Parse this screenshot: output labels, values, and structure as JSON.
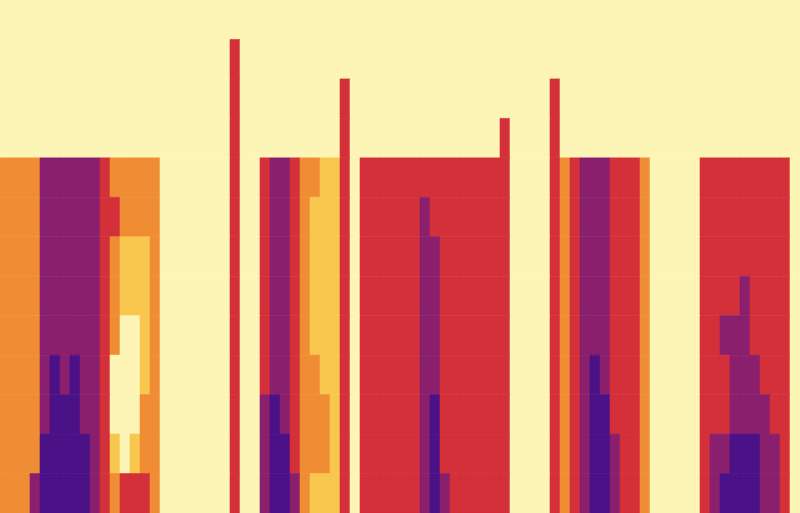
{
  "chart_data": {
    "type": "heatmap",
    "tick_labels": false,
    "xlim": [
      0,
      80
    ],
    "ylim": [
      0,
      13
    ],
    "color_range": [
      0,
      5
    ],
    "cells": [
      [
        0,
        0,
        0,
        0,
        0,
        0,
        0,
        0,
        0,
        0,
        0,
        0,
        0,
        0,
        0,
        0,
        0,
        0,
        0,
        0,
        0,
        0,
        0,
        0,
        0,
        0,
        0,
        0,
        0,
        0,
        0,
        0,
        0,
        0,
        0,
        0,
        0,
        0,
        0,
        0,
        0,
        0,
        0,
        0,
        0,
        0,
        0,
        0,
        0,
        0,
        0,
        0,
        0,
        0,
        0,
        0,
        0,
        0,
        0,
        0,
        0,
        0,
        0,
        0,
        0,
        0,
        0,
        0,
        0,
        0,
        0,
        0,
        0,
        0,
        0,
        0,
        0,
        0,
        0,
        0
      ],
      [
        0,
        0,
        0,
        0,
        0,
        0,
        0,
        0,
        0,
        0,
        0,
        0,
        0,
        0,
        0,
        0,
        0,
        0,
        0,
        0,
        0,
        0,
        0,
        3,
        0,
        0,
        0,
        0,
        0,
        0,
        0,
        0,
        0,
        0,
        0,
        0,
        0,
        0,
        0,
        0,
        0,
        0,
        0,
        0,
        0,
        0,
        0,
        0,
        0,
        0,
        0,
        0,
        0,
        0,
        0,
        0,
        0,
        0,
        0,
        0,
        0,
        0,
        0,
        0,
        0,
        0,
        0,
        0,
        0,
        0,
        0,
        0,
        0,
        0,
        0,
        0,
        0,
        0,
        0,
        0
      ],
      [
        0,
        0,
        0,
        0,
        0,
        0,
        0,
        0,
        0,
        0,
        0,
        0,
        0,
        0,
        0,
        0,
        0,
        0,
        0,
        0,
        0,
        0,
        0,
        3,
        0,
        0,
        0,
        0,
        0,
        0,
        0,
        0,
        0,
        0,
        3,
        0,
        0,
        0,
        0,
        0,
        0,
        0,
        0,
        0,
        0,
        0,
        0,
        0,
        0,
        0,
        0,
        0,
        0,
        0,
        0,
        3,
        0,
        0,
        0,
        0,
        0,
        0,
        0,
        0,
        0,
        0,
        0,
        0,
        0,
        0,
        0,
        0,
        0,
        0,
        0,
        0,
        0,
        0,
        0,
        0
      ],
      [
        0,
        0,
        0,
        0,
        0,
        0,
        0,
        0,
        0,
        0,
        0,
        0,
        0,
        0,
        0,
        0,
        0,
        0,
        0,
        0,
        0,
        0,
        0,
        3,
        0,
        0,
        0,
        0,
        0,
        0,
        0,
        0,
        0,
        0,
        3,
        0,
        0,
        0,
        0,
        0,
        0,
        0,
        0,
        0,
        0,
        0,
        0,
        0,
        0,
        0,
        3,
        0,
        0,
        0,
        0,
        3,
        0,
        0,
        0,
        0,
        0,
        0,
        0,
        0,
        0,
        0,
        0,
        0,
        0,
        0,
        0,
        0,
        0,
        0,
        0,
        0,
        0,
        0,
        0,
        0
      ],
      [
        2,
        2,
        2,
        2,
        4,
        4,
        4,
        4,
        4,
        4,
        3,
        2,
        2,
        2,
        2,
        2,
        0,
        0,
        0,
        0,
        0,
        0,
        0,
        3,
        0,
        0,
        3,
        4,
        4,
        3,
        2,
        2,
        1,
        1,
        3,
        0,
        3,
        3,
        3,
        3,
        3,
        3,
        3,
        3,
        3,
        3,
        3,
        3,
        3,
        3,
        3,
        0,
        0,
        0,
        0,
        3,
        2,
        3,
        4,
        4,
        4,
        3,
        3,
        3,
        2,
        0,
        0,
        0,
        0,
        0,
        3,
        3,
        3,
        3,
        3,
        3,
        3,
        3,
        3,
        0
      ],
      [
        2,
        2,
        2,
        2,
        4,
        4,
        4,
        4,
        4,
        4,
        3,
        3,
        2,
        2,
        2,
        2,
        0,
        0,
        0,
        0,
        0,
        0,
        0,
        3,
        0,
        0,
        3,
        4,
        4,
        3,
        2,
        1,
        1,
        1,
        3,
        0,
        3,
        3,
        3,
        3,
        3,
        3,
        4,
        3,
        3,
        3,
        3,
        3,
        3,
        3,
        3,
        0,
        0,
        0,
        0,
        3,
        2,
        3,
        4,
        4,
        4,
        3,
        3,
        3,
        2,
        0,
        0,
        0,
        0,
        0,
        3,
        3,
        3,
        3,
        3,
        3,
        3,
        3,
        3,
        0
      ],
      [
        2,
        2,
        2,
        2,
        4,
        4,
        4,
        4,
        4,
        4,
        3,
        2,
        1,
        1,
        1,
        2,
        0,
        0,
        0,
        0,
        0,
        0,
        0,
        3,
        0,
        0,
        3,
        4,
        4,
        3,
        2,
        1,
        1,
        1,
        3,
        0,
        3,
        3,
        3,
        3,
        3,
        3,
        4,
        4,
        3,
        3,
        3,
        3,
        3,
        3,
        3,
        0,
        0,
        0,
        0,
        3,
        2,
        3,
        4,
        4,
        4,
        3,
        3,
        3,
        2,
        0,
        0,
        0,
        0,
        0,
        3,
        3,
        3,
        3,
        3,
        3,
        3,
        3,
        3,
        0
      ],
      [
        2,
        2,
        2,
        2,
        4,
        4,
        4,
        4,
        4,
        4,
        3,
        2,
        1,
        1,
        1,
        2,
        0,
        0,
        0,
        0,
        0,
        0,
        0,
        3,
        0,
        0,
        3,
        4,
        4,
        3,
        2,
        1,
        1,
        1,
        3,
        0,
        3,
        3,
        3,
        3,
        3,
        3,
        4,
        4,
        3,
        3,
        3,
        3,
        3,
        3,
        3,
        0,
        0,
        0,
        0,
        3,
        2,
        3,
        4,
        4,
        4,
        3,
        3,
        3,
        2,
        0,
        0,
        0,
        0,
        0,
        3,
        3,
        3,
        3,
        4,
        3,
        3,
        3,
        3,
        0
      ],
      [
        2,
        2,
        2,
        2,
        4,
        4,
        4,
        4,
        4,
        4,
        3,
        2,
        0,
        0,
        1,
        2,
        0,
        0,
        0,
        0,
        0,
        0,
        0,
        3,
        0,
        0,
        3,
        4,
        4,
        3,
        2,
        1,
        1,
        1,
        3,
        0,
        3,
        3,
        3,
        3,
        3,
        3,
        4,
        4,
        3,
        3,
        3,
        3,
        3,
        3,
        3,
        0,
        0,
        0,
        0,
        3,
        2,
        3,
        4,
        4,
        4,
        3,
        3,
        3,
        2,
        0,
        0,
        0,
        0,
        0,
        3,
        3,
        4,
        4,
        4,
        3,
        3,
        3,
        3,
        0
      ],
      [
        2,
        2,
        2,
        2,
        4,
        5,
        4,
        5,
        4,
        4,
        3,
        0,
        0,
        0,
        1,
        2,
        0,
        0,
        0,
        0,
        0,
        0,
        0,
        3,
        0,
        0,
        3,
        4,
        4,
        3,
        2,
        2,
        1,
        1,
        3,
        0,
        3,
        3,
        3,
        3,
        3,
        3,
        4,
        4,
        3,
        3,
        3,
        3,
        3,
        3,
        3,
        0,
        0,
        0,
        0,
        3,
        2,
        3,
        4,
        5,
        4,
        3,
        3,
        3,
        2,
        0,
        0,
        0,
        0,
        0,
        3,
        3,
        3,
        4,
        4,
        4,
        3,
        3,
        3,
        0
      ],
      [
        2,
        2,
        2,
        2,
        4,
        5,
        5,
        5,
        4,
        4,
        3,
        0,
        0,
        0,
        2,
        2,
        0,
        0,
        0,
        0,
        0,
        0,
        0,
        3,
        0,
        0,
        4,
        5,
        4,
        3,
        2,
        2,
        2,
        1,
        3,
        0,
        3,
        3,
        3,
        3,
        3,
        3,
        4,
        5,
        3,
        3,
        3,
        3,
        3,
        3,
        3,
        0,
        0,
        0,
        0,
        3,
        2,
        3,
        4,
        5,
        5,
        3,
        3,
        3,
        2,
        0,
        0,
        0,
        0,
        0,
        3,
        3,
        3,
        4,
        4,
        4,
        4,
        3,
        3,
        0
      ],
      [
        2,
        2,
        2,
        2,
        5,
        5,
        5,
        5,
        5,
        4,
        3,
        1,
        0,
        1,
        2,
        2,
        0,
        0,
        0,
        0,
        0,
        0,
        0,
        3,
        0,
        0,
        4,
        5,
        5,
        3,
        2,
        2,
        2,
        1,
        3,
        0,
        3,
        3,
        3,
        3,
        3,
        3,
        4,
        5,
        3,
        3,
        3,
        3,
        3,
        3,
        3,
        0,
        0,
        0,
        0,
        3,
        2,
        3,
        4,
        5,
        5,
        4,
        3,
        3,
        2,
        0,
        0,
        0,
        0,
        0,
        3,
        4,
        4,
        5,
        5,
        5,
        4,
        4,
        3,
        0
      ],
      [
        2,
        2,
        2,
        4,
        5,
        5,
        5,
        5,
        5,
        4,
        3,
        2,
        3,
        3,
        3,
        2,
        0,
        0,
        0,
        0,
        0,
        0,
        0,
        3,
        0,
        0,
        4,
        5,
        5,
        4,
        2,
        1,
        1,
        1,
        3,
        0,
        3,
        3,
        3,
        3,
        3,
        3,
        4,
        5,
        4,
        3,
        3,
        3,
        3,
        3,
        3,
        0,
        0,
        0,
        0,
        3,
        2,
        3,
        4,
        5,
        5,
        4,
        3,
        3,
        2,
        0,
        0,
        0,
        0,
        0,
        3,
        4,
        5,
        5,
        5,
        5,
        4,
        4,
        3,
        0
      ]
    ]
  }
}
